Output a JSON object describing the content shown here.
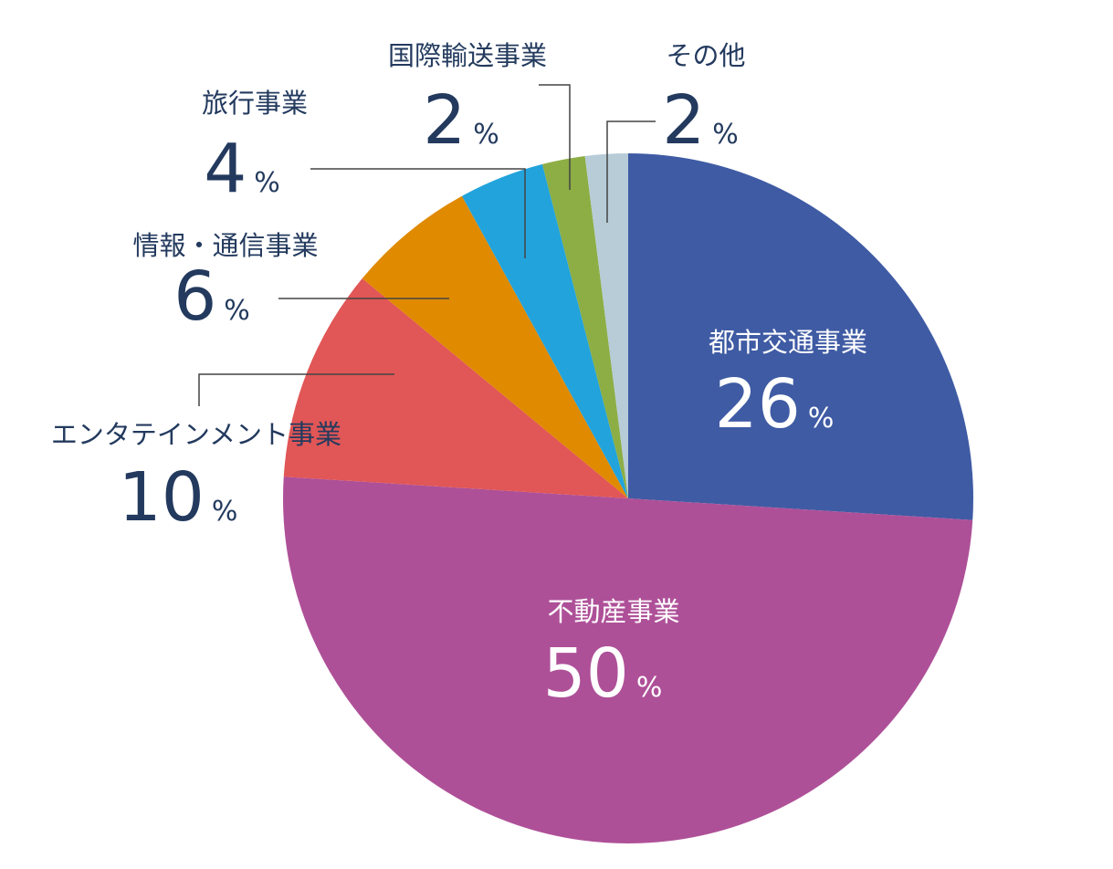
{
  "chart_data": {
    "type": "pie",
    "categories": [
      "都市交通事業",
      "不動産事業",
      "エンタテインメント事業",
      "情報・通信事業",
      "旅行事業",
      "国際輸送事業",
      "その他"
    ],
    "values": [
      26,
      50,
      10,
      6,
      4,
      2,
      2
    ],
    "colors": [
      "#3f5ba4",
      "#ae5098",
      "#e15656",
      "#e08a00",
      "#22a3dc",
      "#8cae44",
      "#b7ccd7"
    ],
    "unit": "%"
  }
}
